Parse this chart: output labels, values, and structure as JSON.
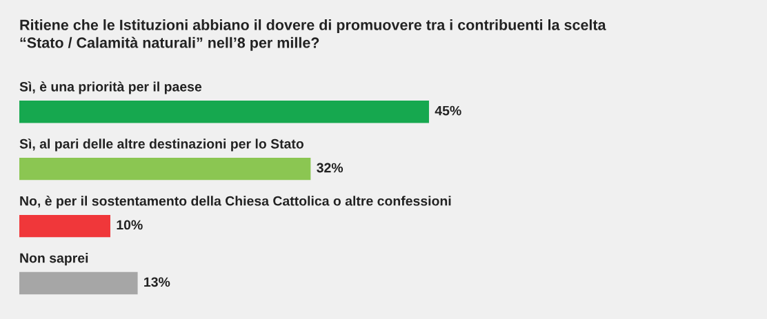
{
  "chart_data": {
    "type": "bar",
    "orientation": "horizontal",
    "title": "Ritiene che le Istituzioni abbiano il dovere di promuovere tra i contribuenti la scelta\n“Stato / Calamità naturali” nell’8 per mille?",
    "categories": [
      "Sì, è una priorità per il paese",
      "Sì, al pari delle altre destinazioni per lo Stato",
      "No, è per il sostentamento della Chiesa Cattolica o altre confessioni",
      "Non saprei"
    ],
    "values": [
      45,
      32,
      10,
      13
    ],
    "colors": [
      "#16a84f",
      "#8bc652",
      "#f0373a",
      "#a6a6a6"
    ],
    "value_labels": [
      "45%",
      "32%",
      "10%",
      "13%"
    ]
  }
}
